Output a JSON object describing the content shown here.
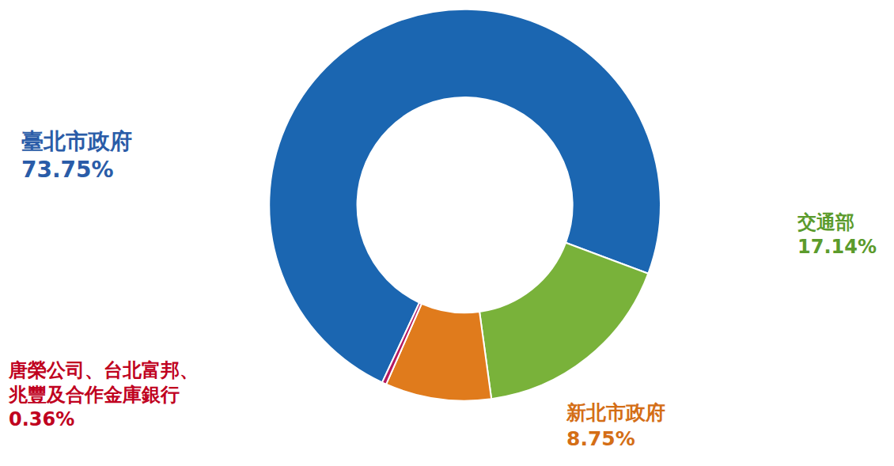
{
  "chart_data": {
    "type": "pie",
    "categories": [
      "臺北市政府",
      "交通部",
      "新北市政府",
      "唐榮公司、台北富邦、兆豐及合作金庫銀行"
    ],
    "values": [
      73.75,
      17.14,
      8.75,
      0.36
    ],
    "value_labels": [
      "73.75%",
      "17.14%",
      "8.75%",
      "0.36%"
    ],
    "colors": [
      "#1b66b1",
      "#79b23a",
      "#e07b1c",
      "#b3175f"
    ],
    "data_labels": true
  }
}
